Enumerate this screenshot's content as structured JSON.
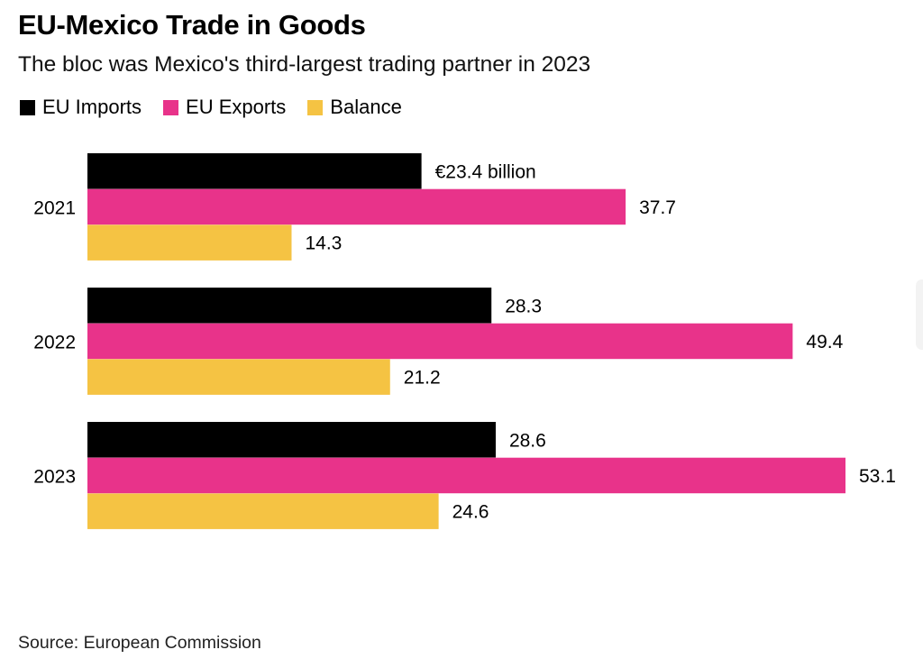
{
  "header": {
    "title": "EU-Mexico Trade in Goods",
    "subtitle": "The bloc was Mexico's third-largest trading partner in 2023"
  },
  "legend": [
    {
      "label": "EU Imports",
      "color": "#000000"
    },
    {
      "label": "EU Exports",
      "color": "#e8338a"
    },
    {
      "label": "Balance",
      "color": "#f5c343"
    }
  ],
  "footer": {
    "source": "Source: European Commission"
  },
  "chart_data": {
    "type": "bar",
    "orientation": "horizontal",
    "title": "EU-Mexico Trade in Goods",
    "subtitle": "The bloc was Mexico's third-largest trading partner in 2023",
    "categories": [
      "2021",
      "2022",
      "2023"
    ],
    "series": [
      {
        "name": "EU Imports",
        "color": "#000000",
        "values": [
          23.4,
          28.3,
          28.6
        ],
        "labels": [
          "€23.4 billion",
          "28.3",
          "28.6"
        ]
      },
      {
        "name": "EU Exports",
        "color": "#e8338a",
        "values": [
          37.7,
          49.4,
          53.1
        ],
        "labels": [
          "37.7",
          "49.4",
          "53.1"
        ]
      },
      {
        "name": "Balance",
        "color": "#f5c343",
        "values": [
          14.3,
          21.2,
          24.6
        ],
        "labels": [
          "14.3",
          "21.2",
          "24.6"
        ]
      }
    ],
    "unit": "€ billion",
    "xlim": [
      0,
      53.1
    ],
    "grid": false,
    "legend_position": "top-left",
    "source": "Source: European Commission"
  }
}
